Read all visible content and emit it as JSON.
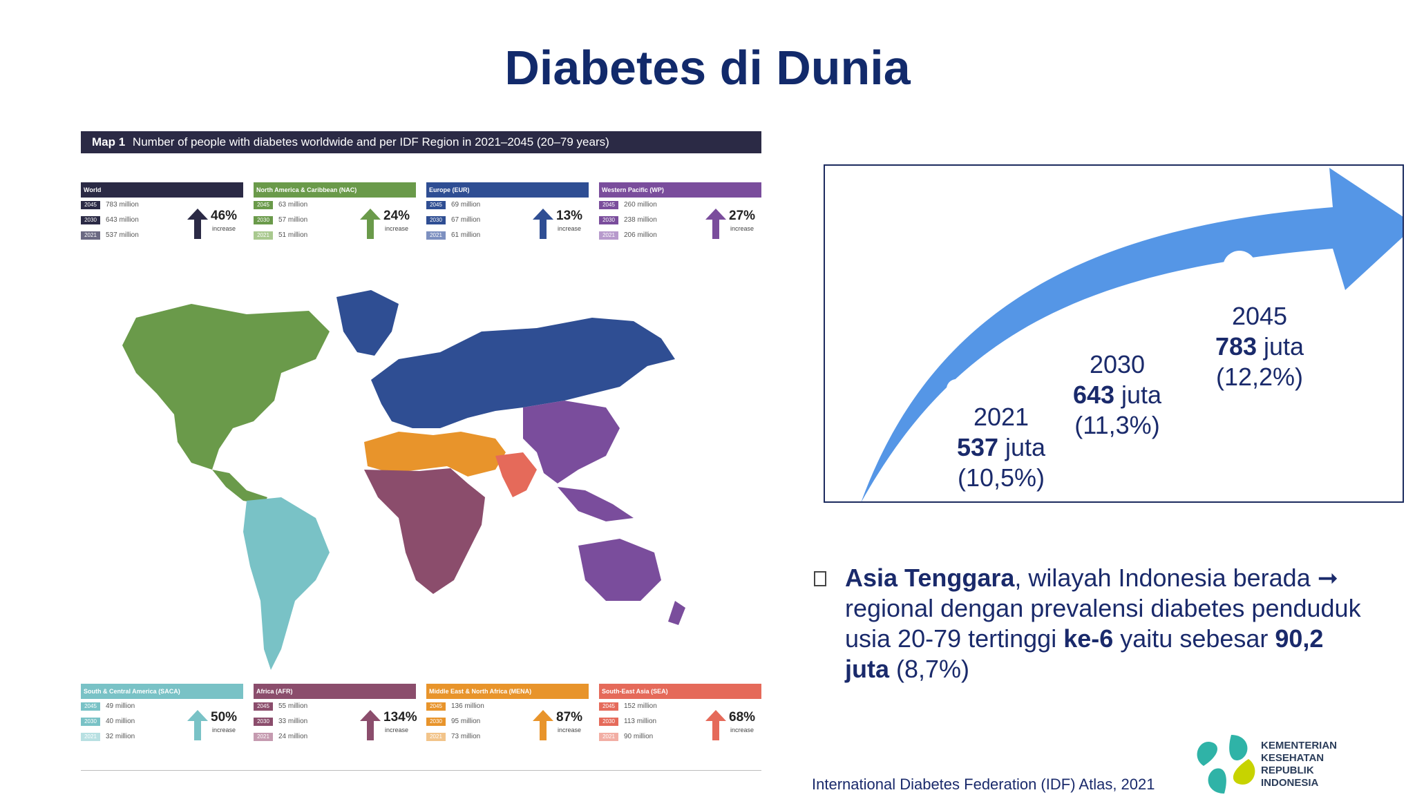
{
  "title": "Diabetes di Dunia",
  "map": {
    "header_bold": "Map 1",
    "header_text": "Number of people with diabetes worldwide and per IDF Region in 2021–2045 (20–79 years)",
    "top_regions": [
      {
        "name": "World",
        "color": "#2b2a45",
        "light": "#6a6982",
        "rows": [
          {
            "year": "2045",
            "value": "783 million"
          },
          {
            "year": "2030",
            "value": "643 million"
          },
          {
            "year": "2021",
            "value": "537 million"
          }
        ],
        "pct": "46%",
        "inc": "increase"
      },
      {
        "name": "North America & Caribbean (NAC)",
        "color": "#6a9a4a",
        "light": "#a9c98f",
        "rows": [
          {
            "year": "2045",
            "value": "63 million"
          },
          {
            "year": "2030",
            "value": "57 million"
          },
          {
            "year": "2021",
            "value": "51 million"
          }
        ],
        "pct": "24%",
        "inc": "increase"
      },
      {
        "name": "Europe (EUR)",
        "color": "#2f4e93",
        "light": "#7d90c0",
        "rows": [
          {
            "year": "2045",
            "value": "69 million"
          },
          {
            "year": "2030",
            "value": "67 million"
          },
          {
            "year": "2021",
            "value": "61 million"
          }
        ],
        "pct": "13%",
        "inc": "increase"
      },
      {
        "name": "Western Pacific (WP)",
        "color": "#7a4d9c",
        "light": "#b79acc",
        "rows": [
          {
            "year": "2045",
            "value": "260 million"
          },
          {
            "year": "2030",
            "value": "238 million"
          },
          {
            "year": "2021",
            "value": "206 million"
          }
        ],
        "pct": "27%",
        "inc": "increase"
      }
    ],
    "bottom_regions": [
      {
        "name": "South & Central America (SACA)",
        "color": "#79c2c6",
        "light": "#b8e0e2",
        "rows": [
          {
            "year": "2045",
            "value": "49 million"
          },
          {
            "year": "2030",
            "value": "40 million"
          },
          {
            "year": "2021",
            "value": "32 million"
          }
        ],
        "pct": "50%",
        "inc": "increase"
      },
      {
        "name": "Africa (AFR)",
        "color": "#8b4d6c",
        "light": "#c59bb0",
        "rows": [
          {
            "year": "2045",
            "value": "55 million"
          },
          {
            "year": "2030",
            "value": "33 million"
          },
          {
            "year": "2021",
            "value": "24 million"
          }
        ],
        "pct": "134%",
        "inc": "increase"
      },
      {
        "name": "Middle East & North Africa (MENA)",
        "color": "#e8942b",
        "light": "#f2c48a",
        "rows": [
          {
            "year": "2045",
            "value": "136 million"
          },
          {
            "year": "2030",
            "value": "95 million"
          },
          {
            "year": "2021",
            "value": "73 million"
          }
        ],
        "pct": "87%",
        "inc": "increase"
      },
      {
        "name": "South-East Asia (SEA)",
        "color": "#e56a5a",
        "light": "#f2aea4",
        "rows": [
          {
            "year": "2045",
            "value": "152 million"
          },
          {
            "year": "2030",
            "value": "113 million"
          },
          {
            "year": "2021",
            "value": "90 million"
          }
        ],
        "pct": "68%",
        "inc": "increase"
      }
    ]
  },
  "trend": {
    "arrow_color": "#5596e6",
    "points": [
      {
        "year": "2021",
        "value": "537",
        "unit": " juta",
        "pct": "(10,5%)"
      },
      {
        "year": "2030",
        "value": "643",
        "unit": " juta",
        "pct": "(11,3%)"
      },
      {
        "year": "2045",
        "value": "783",
        "unit": " juta",
        "pct": "(12,2%)"
      }
    ]
  },
  "note": {
    "b1": "Asia Tenggara",
    "t1": ", wilayah Indonesia berada ➞ regional dengan prevalensi diabetes penduduk usia 20-79 tertinggi ",
    "b2": "ke-6",
    "t2": " yaitu sebesar ",
    "b3": "90,2 juta",
    "t3": " (8,7%)"
  },
  "source": "International Diabetes Federation (IDF) Atlas, 2021",
  "logo": {
    "lines": [
      "KEMENTERIAN",
      "KESEHATAN",
      "REPUBLIK",
      "INDONESIA"
    ]
  }
}
